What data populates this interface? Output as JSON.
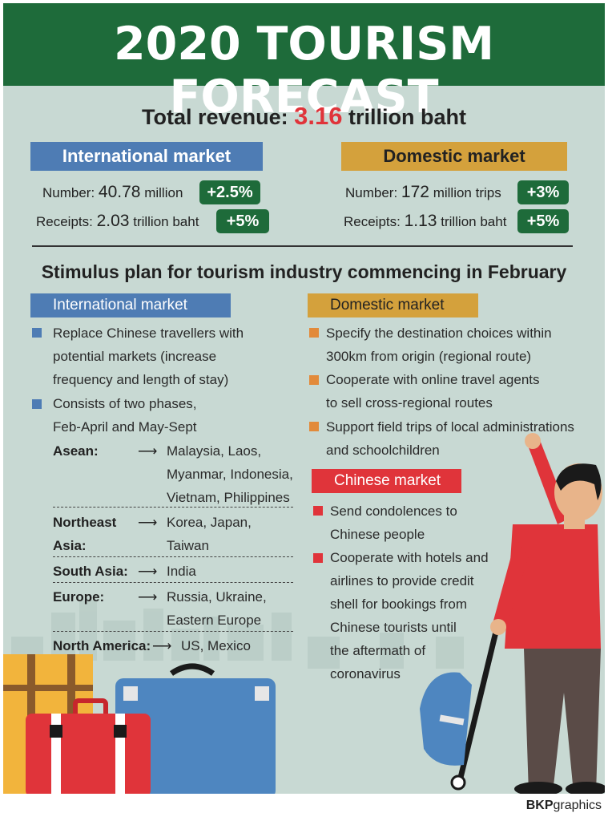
{
  "title": "2020 TOURISM FORECAST",
  "total": {
    "label": "Total revenue:",
    "value": "3.16",
    "unit": "trillion baht"
  },
  "international": {
    "heading": "International market",
    "number_label": "Number:",
    "number_value": "40.78",
    "number_unit": "million",
    "number_change": "+2.5%",
    "receipts_label": "Receipts:",
    "receipts_value": "2.03",
    "receipts_unit": "trillion baht",
    "receipts_change": "+5%"
  },
  "domestic": {
    "heading": "Domestic market",
    "number_label": "Number:",
    "number_value": "172",
    "number_unit": "million trips",
    "number_change": "+3%",
    "receipts_label": "Receipts:",
    "receipts_value": "1.13",
    "receipts_unit": "trillion baht",
    "receipts_change": "+5%"
  },
  "stimulus_title": "Stimulus plan for tourism industry commencing in February",
  "stim_international": {
    "heading": "International market",
    "bullet1": [
      "Replace Chinese travellers with",
      "potential markets (increase",
      "frequency and length of stay)"
    ],
    "bullet2": [
      "Consists of two phases,",
      "Feb-April and May-Sept"
    ],
    "regions": [
      {
        "label": "Asean:",
        "countries": [
          "Malaysia, Laos,",
          "Myanmar, Indonesia,",
          "Vietnam, Philippines"
        ]
      },
      {
        "label": "Northeast",
        "label2": "Asia:",
        "countries": [
          "Korea, Japan,",
          "Taiwan"
        ]
      },
      {
        "label": "South Asia:",
        "countries": [
          "India"
        ]
      },
      {
        "label": "Europe:",
        "countries": [
          "Russia, Ukraine,",
          "Eastern Europe"
        ]
      },
      {
        "label": "North America:",
        "countries": [
          "US, Mexico"
        ]
      }
    ]
  },
  "stim_domestic": {
    "heading": "Domestic market",
    "bullet1": [
      "Specify the destination choices within",
      "300km from origin (regional route)"
    ],
    "bullet2": [
      "Cooperate with online travel agents",
      "to sell cross-regional routes"
    ],
    "bullet3": [
      "Support field trips of local administrations",
      "and schoolchildren"
    ]
  },
  "stim_chinese": {
    "heading": "Chinese market",
    "bullet1": [
      "Send condolences to",
      "Chinese people"
    ],
    "bullet2": [
      "Cooperate with hotels and",
      "airlines to provide credit",
      "shell for bookings from",
      "Chinese tourists until",
      "the aftermath of",
      "coronavirus"
    ]
  },
  "credit": {
    "bold": "BKP",
    "rest": "graphics"
  },
  "colors": {
    "green": "#1e6b3a",
    "blue": "#4e7cb4",
    "gold": "#d4a13c",
    "red": "#e0343a",
    "background": "#c8d9d3"
  }
}
